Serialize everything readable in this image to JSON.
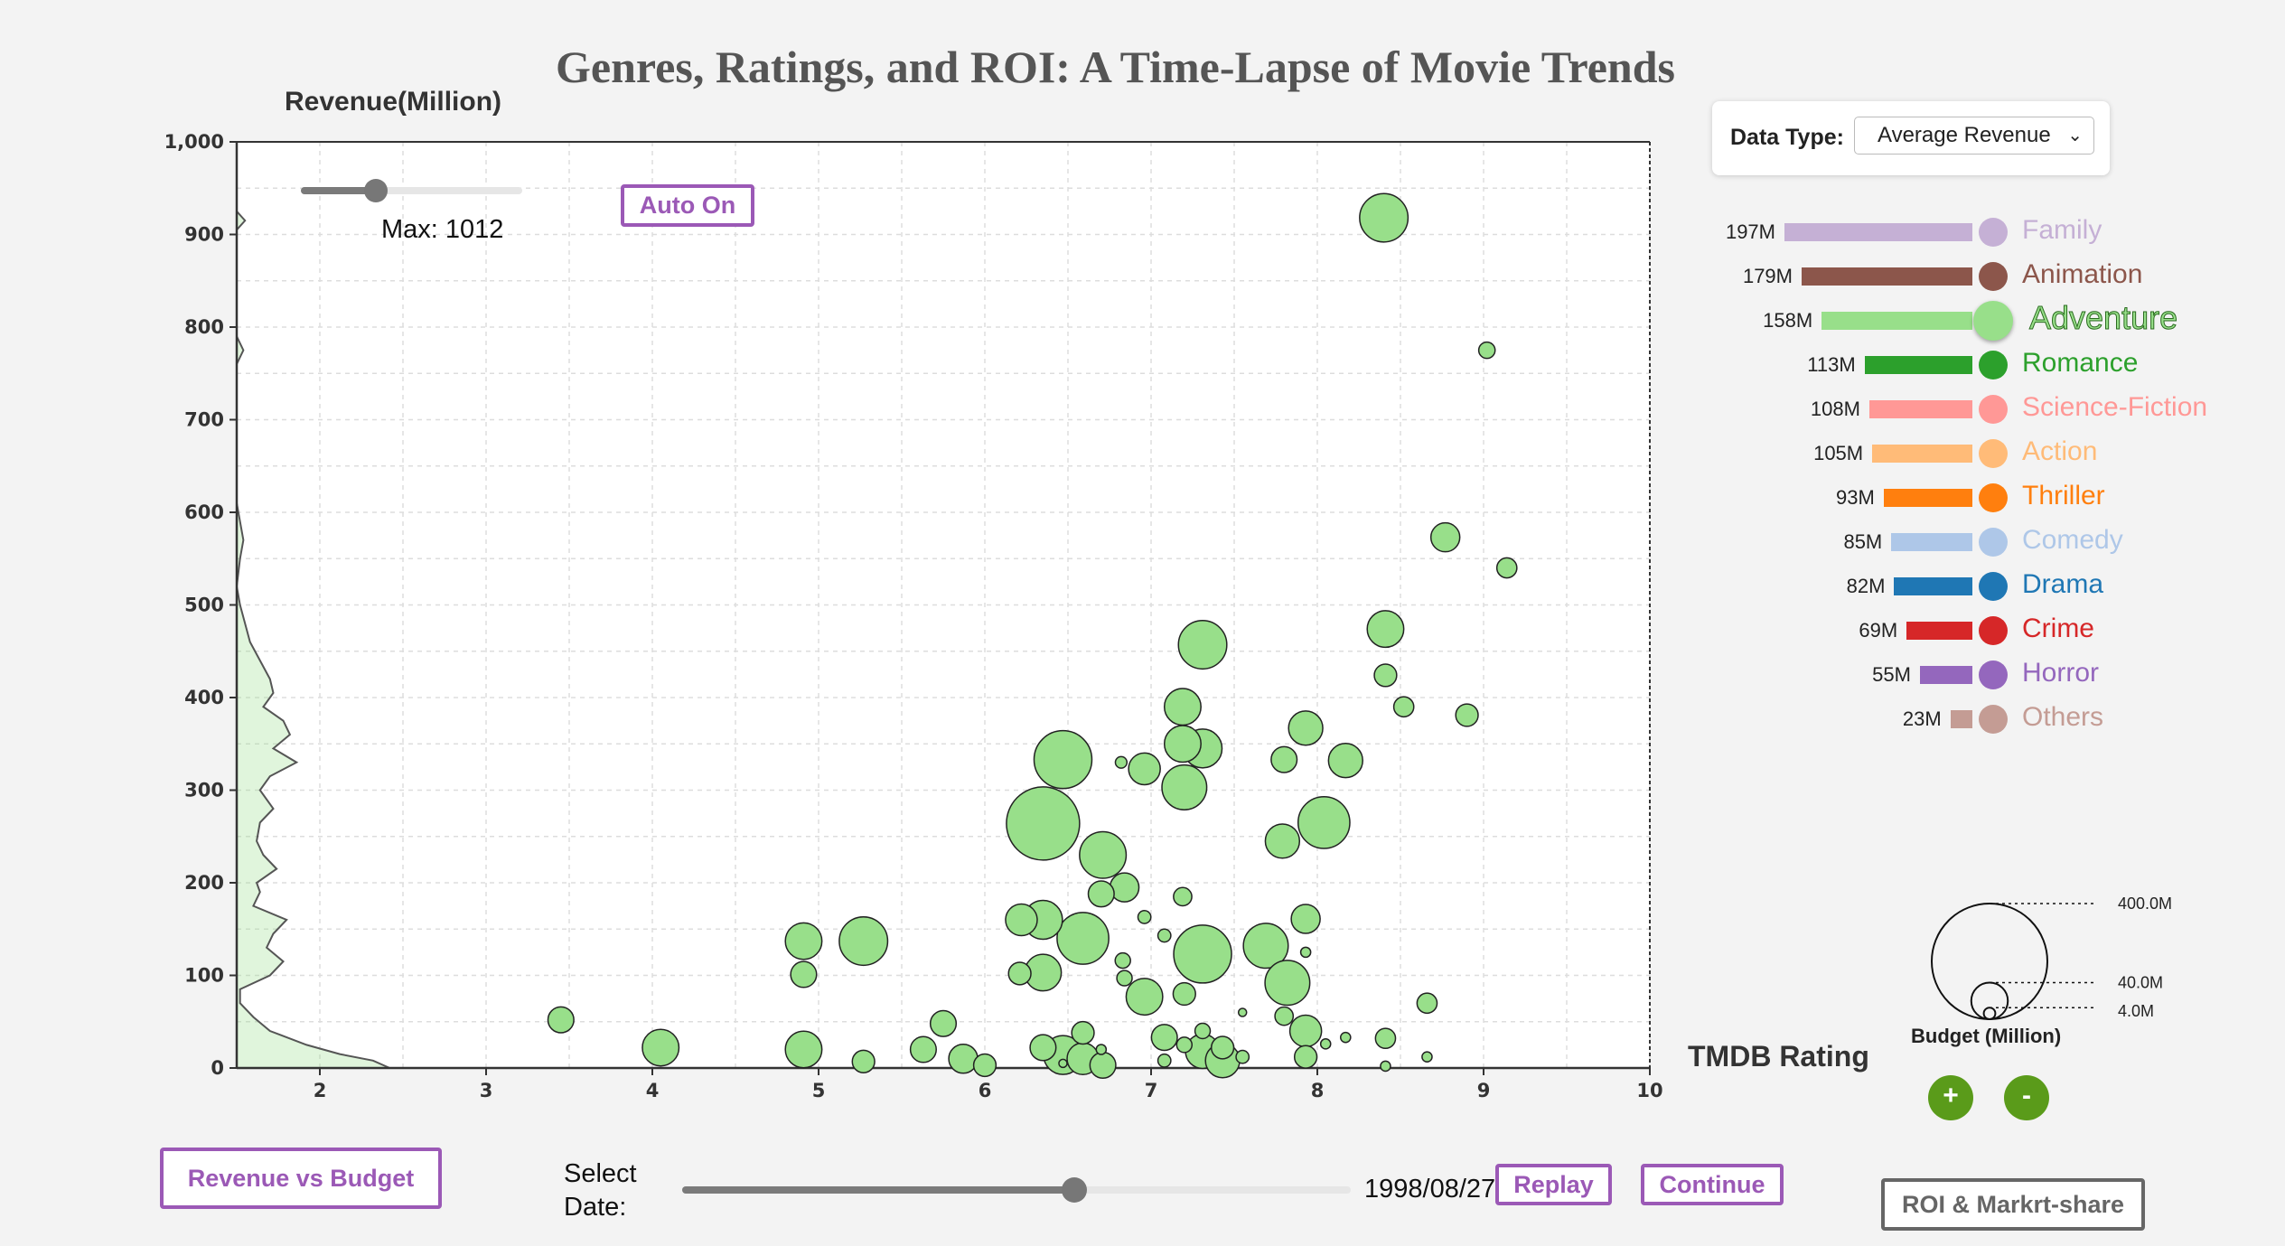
{
  "title": "Genres, Ratings, and ROI: A Time-Lapse of Movie Trends",
  "year": "1998",
  "max_control": {
    "label": "Max: 1012",
    "value_fraction": 0.35
  },
  "auto_button": "Auto On",
  "data_type": {
    "label": "Data Type:",
    "selected": "Average Revenue"
  },
  "legend": [
    {
      "value": "197M",
      "name": "Family",
      "color": "#c5b0d5",
      "amount": 197
    },
    {
      "value": "179M",
      "name": "Animation",
      "color": "#8c564b",
      "amount": 179
    },
    {
      "value": "158M",
      "name": "Adventure",
      "color": "#98df8a",
      "amount": 158,
      "highlighted": true
    },
    {
      "value": "113M",
      "name": "Romance",
      "color": "#2ca02c",
      "amount": 113
    },
    {
      "value": "108M",
      "name": "Science-Fiction",
      "color": "#ff9896",
      "amount": 108
    },
    {
      "value": "105M",
      "name": "Action",
      "color": "#ffbb78",
      "amount": 105
    },
    {
      "value": "93M",
      "name": "Thriller",
      "color": "#ff7f0e",
      "amount": 93
    },
    {
      "value": "85M",
      "name": "Comedy",
      "color": "#aec7e8",
      "amount": 85
    },
    {
      "value": "82M",
      "name": "Drama",
      "color": "#1f77b4",
      "amount": 82
    },
    {
      "value": "69M",
      "name": "Crime",
      "color": "#d62728",
      "amount": 69
    },
    {
      "value": "55M",
      "name": "Horror",
      "color": "#9467bd",
      "amount": 55
    },
    {
      "value": "23M",
      "name": "Others",
      "color": "#c49c94",
      "amount": 23
    }
  ],
  "budget_legend": {
    "title": "Budget (Million)",
    "labels": [
      "400.0M",
      "40.0M",
      "4.0M"
    ],
    "values": [
      400,
      40,
      4
    ]
  },
  "zoom_in": "+",
  "zoom_out": "-",
  "select_date": {
    "label_line1": "Select",
    "label_line2": "Date:",
    "value": "1998/08/27",
    "fraction": 0.58
  },
  "buttons": {
    "revenue_vs_budget": "Revenue vs Budget",
    "replay": "Replay",
    "continue": "Continue",
    "roi": "ROI & Markrt-share"
  },
  "chart_data": {
    "type": "scatter",
    "title": "Genres, Ratings, and ROI: A Time-Lapse of Movie Trends",
    "xlabel": "TMDB Rating",
    "ylabel": "Revenue(Million)",
    "xlim": [
      1.5,
      10
    ],
    "ylim": [
      0,
      1000
    ],
    "x_ticks": [
      2,
      3,
      4,
      5,
      6,
      7,
      8,
      9,
      10
    ],
    "y_ticks": [
      0,
      100,
      200,
      300,
      400,
      500,
      600,
      700,
      800,
      900,
      1000
    ],
    "y_tick_labels": [
      "0",
      "100",
      "200",
      "300",
      "400",
      "500",
      "600",
      "700",
      "800",
      "900",
      "1,000"
    ],
    "grid": true,
    "series": [
      {
        "name": "Adventure",
        "color": "#98df8a",
        "points": [
          {
            "x": 8.4,
            "y": 918,
            "budget": 70
          },
          {
            "x": 9.02,
            "y": 775,
            "budget": 8
          },
          {
            "x": 8.77,
            "y": 573,
            "budget": 25
          },
          {
            "x": 9.14,
            "y": 540,
            "budget": 12
          },
          {
            "x": 7.31,
            "y": 457,
            "budget": 70
          },
          {
            "x": 8.41,
            "y": 474,
            "budget": 40
          },
          {
            "x": 8.41,
            "y": 424,
            "budget": 15
          },
          {
            "x": 8.52,
            "y": 390,
            "budget": 12
          },
          {
            "x": 8.9,
            "y": 381,
            "budget": 15
          },
          {
            "x": 7.19,
            "y": 390,
            "budget": 40
          },
          {
            "x": 7.93,
            "y": 367,
            "budget": 35
          },
          {
            "x": 7.19,
            "y": 350,
            "budget": 40
          },
          {
            "x": 7.31,
            "y": 345,
            "budget": 45
          },
          {
            "x": 6.47,
            "y": 333,
            "budget": 100
          },
          {
            "x": 6.82,
            "y": 330,
            "budget": 4
          },
          {
            "x": 6.96,
            "y": 323,
            "budget": 30
          },
          {
            "x": 7.8,
            "y": 333,
            "budget": 20
          },
          {
            "x": 8.17,
            "y": 332,
            "budget": 35
          },
          {
            "x": 7.2,
            "y": 303,
            "budget": 60
          },
          {
            "x": 6.35,
            "y": 264,
            "budget": 160
          },
          {
            "x": 8.04,
            "y": 265,
            "budget": 80
          },
          {
            "x": 6.71,
            "y": 230,
            "budget": 65
          },
          {
            "x": 7.79,
            "y": 245,
            "budget": 35
          },
          {
            "x": 6.84,
            "y": 195,
            "budget": 25
          },
          {
            "x": 6.7,
            "y": 188,
            "budget": 20
          },
          {
            "x": 7.19,
            "y": 185,
            "budget": 10
          },
          {
            "x": 6.96,
            "y": 163,
            "budget": 5
          },
          {
            "x": 7.93,
            "y": 161,
            "budget": 25
          },
          {
            "x": 6.22,
            "y": 160,
            "budget": 30
          },
          {
            "x": 6.35,
            "y": 160,
            "budget": 45
          },
          {
            "x": 4.91,
            "y": 137,
            "budget": 40
          },
          {
            "x": 5.27,
            "y": 137,
            "budget": 70
          },
          {
            "x": 6.59,
            "y": 140,
            "budget": 80
          },
          {
            "x": 7.69,
            "y": 132,
            "budget": 60
          },
          {
            "x": 7.08,
            "y": 143,
            "budget": 5
          },
          {
            "x": 7.31,
            "y": 123,
            "budget": 100
          },
          {
            "x": 7.93,
            "y": 125,
            "budget": 3
          },
          {
            "x": 6.83,
            "y": 116,
            "budget": 7
          },
          {
            "x": 4.91,
            "y": 101,
            "budget": 20
          },
          {
            "x": 6.21,
            "y": 102,
            "budget": 15
          },
          {
            "x": 6.35,
            "y": 103,
            "budget": 40
          },
          {
            "x": 6.84,
            "y": 97,
            "budget": 7
          },
          {
            "x": 7.82,
            "y": 92,
            "budget": 60
          },
          {
            "x": 6.96,
            "y": 77,
            "budget": 40
          },
          {
            "x": 7.2,
            "y": 80,
            "budget": 15
          },
          {
            "x": 8.66,
            "y": 70,
            "budget": 12
          },
          {
            "x": 7.55,
            "y": 60,
            "budget": 2
          },
          {
            "x": 3.45,
            "y": 52,
            "budget": 20
          },
          {
            "x": 5.75,
            "y": 48,
            "budget": 20
          },
          {
            "x": 7.8,
            "y": 56,
            "budget": 10
          },
          {
            "x": 7.93,
            "y": 40,
            "budget": 30
          },
          {
            "x": 6.59,
            "y": 38,
            "budget": 15
          },
          {
            "x": 7.08,
            "y": 33,
            "budget": 20
          },
          {
            "x": 7.31,
            "y": 40,
            "budget": 7
          },
          {
            "x": 8.17,
            "y": 33,
            "budget": 3
          },
          {
            "x": 8.41,
            "y": 32,
            "budget": 12
          },
          {
            "x": 8.05,
            "y": 26,
            "budget": 3
          },
          {
            "x": 4.05,
            "y": 22,
            "budget": 40
          },
          {
            "x": 4.91,
            "y": 20,
            "budget": 40
          },
          {
            "x": 5.63,
            "y": 20,
            "budget": 20
          },
          {
            "x": 6.35,
            "y": 22,
            "budget": 20
          },
          {
            "x": 6.47,
            "y": 14,
            "budget": 45
          },
          {
            "x": 6.59,
            "y": 10,
            "budget": 30
          },
          {
            "x": 6.7,
            "y": 20,
            "budget": 3
          },
          {
            "x": 7.2,
            "y": 25,
            "budget": 7
          },
          {
            "x": 7.31,
            "y": 18,
            "budget": 35
          },
          {
            "x": 7.43,
            "y": 22,
            "budget": 15
          },
          {
            "x": 7.43,
            "y": 8,
            "budget": 35
          },
          {
            "x": 7.55,
            "y": 12,
            "budget": 5
          },
          {
            "x": 7.93,
            "y": 12,
            "budget": 15
          },
          {
            "x": 8.66,
            "y": 12,
            "budget": 3
          },
          {
            "x": 5.27,
            "y": 7,
            "budget": 15
          },
          {
            "x": 5.87,
            "y": 10,
            "budget": 25
          },
          {
            "x": 6.0,
            "y": 3,
            "budget": 15
          },
          {
            "x": 6.71,
            "y": 3,
            "budget": 20
          },
          {
            "x": 7.08,
            "y": 8,
            "budget": 5
          },
          {
            "x": 6.47,
            "y": 5,
            "budget": 2
          },
          {
            "x": 8.41,
            "y": 2,
            "budget": 3
          }
        ]
      }
    ],
    "density": [
      [
        0,
        2.42
      ],
      [
        8,
        2.32
      ],
      [
        15,
        2.12
      ],
      [
        25,
        1.92
      ],
      [
        40,
        1.7
      ],
      [
        55,
        1.6
      ],
      [
        70,
        1.52
      ],
      [
        85,
        1.52
      ],
      [
        100,
        1.7
      ],
      [
        115,
        1.78
      ],
      [
        130,
        1.68
      ],
      [
        145,
        1.72
      ],
      [
        160,
        1.8
      ],
      [
        175,
        1.6
      ],
      [
        190,
        1.64
      ],
      [
        200,
        1.62
      ],
      [
        215,
        1.74
      ],
      [
        230,
        1.66
      ],
      [
        245,
        1.62
      ],
      [
        265,
        1.64
      ],
      [
        280,
        1.72
      ],
      [
        300,
        1.64
      ],
      [
        315,
        1.7
      ],
      [
        330,
        1.86
      ],
      [
        345,
        1.72
      ],
      [
        360,
        1.82
      ],
      [
        375,
        1.78
      ],
      [
        390,
        1.66
      ],
      [
        405,
        1.72
      ],
      [
        420,
        1.7
      ],
      [
        440,
        1.64
      ],
      [
        460,
        1.58
      ],
      [
        480,
        1.55
      ],
      [
        500,
        1.52
      ],
      [
        520,
        1.5
      ],
      [
        550,
        1.52
      ],
      [
        570,
        1.54
      ],
      [
        590,
        1.52
      ],
      [
        610,
        1.5
      ],
      [
        760,
        1.5
      ],
      [
        775,
        1.54
      ],
      [
        790,
        1.5
      ],
      [
        905,
        1.5
      ],
      [
        915,
        1.55
      ],
      [
        925,
        1.5
      ],
      [
        1000,
        1.5
      ]
    ]
  }
}
